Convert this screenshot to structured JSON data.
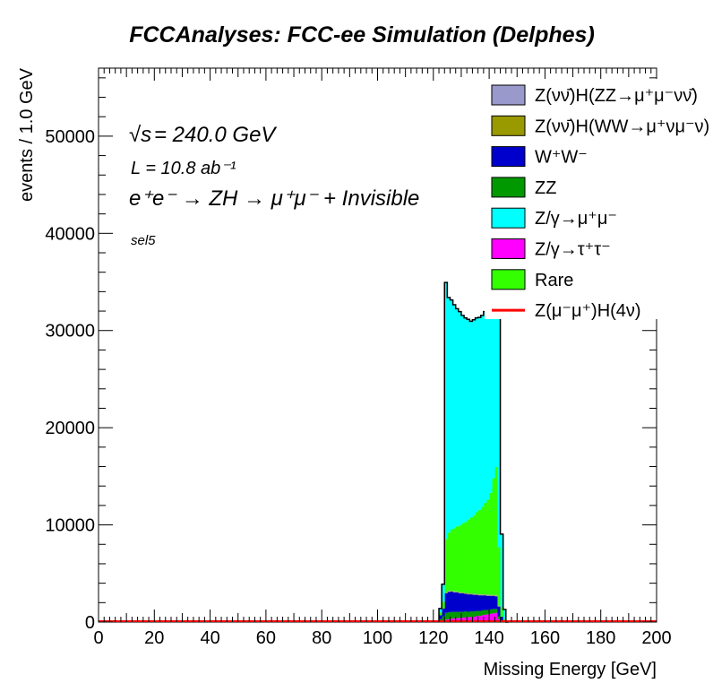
{
  "chart_data": {
    "type": "area",
    "stacked": true,
    "title": "FCCAnalyses: FCC-ee Simulation (Delphes)",
    "xlabel": "Missing Energy [GeV]",
    "ylabel": "events / 1.0 GeV",
    "xlim": [
      0,
      200
    ],
    "ylim": [
      0,
      57000
    ],
    "xticks": [
      "0",
      "20",
      "40",
      "60",
      "80",
      "100",
      "120",
      "140",
      "160",
      "180",
      "200"
    ],
    "yticks": [
      "0",
      "10000",
      "20000",
      "30000",
      "40000",
      "50000"
    ],
    "grid": false,
    "legend_position": "top-right",
    "annotations": {
      "energy_sqrt": "√s",
      "energy_value": " = 240.0 GeV",
      "lumi": "L = 10.8 ab⁻¹",
      "process": "e⁺e⁻ → ZH → μ⁺μ⁻ + Invisible",
      "selection": "sel5"
    },
    "x": [
      122,
      123,
      124,
      125,
      126,
      127,
      128,
      129,
      130,
      131,
      132,
      133,
      134,
      135,
      136,
      137,
      138,
      139,
      140,
      141,
      142,
      143,
      144,
      145,
      146
    ],
    "series": [
      {
        "name": "Z/γ→τ⁺τ⁻",
        "color": "#ff00ff",
        "values": [
          0,
          100,
          250,
          300,
          350,
          400,
          400,
          450,
          450,
          500,
          500,
          550,
          550,
          600,
          650,
          700,
          750,
          800,
          850,
          900,
          950,
          300,
          0,
          0,
          0
        ]
      },
      {
        "name": "ZZ",
        "color": "#009900",
        "values": [
          300,
          500,
          700,
          700,
          700,
          650,
          650,
          600,
          600,
          600,
          550,
          550,
          550,
          550,
          500,
          500,
          500,
          450,
          450,
          450,
          400,
          300,
          150,
          50,
          0
        ]
      },
      {
        "name": "W⁺W⁻",
        "color": "#0000cc",
        "values": [
          400,
          800,
          2000,
          2100,
          2100,
          2000,
          2000,
          1900,
          1900,
          1800,
          1800,
          1750,
          1700,
          1650,
          1600,
          1550,
          1500,
          1450,
          1400,
          1350,
          1300,
          1000,
          400,
          100,
          0
        ]
      },
      {
        "name": "Z(νν̄)H(WW→μ⁺νμ⁻ν)",
        "color": "#999900",
        "values": [
          0,
          0,
          50,
          50,
          50,
          50,
          50,
          50,
          50,
          50,
          50,
          50,
          50,
          50,
          50,
          50,
          50,
          50,
          50,
          50,
          50,
          50,
          0,
          0,
          0
        ]
      },
      {
        "name": "Z(νν̄)H(ZZ→μ⁺μ⁻νν̄)",
        "color": "#9999cc",
        "values": [
          0,
          0,
          50,
          50,
          50,
          50,
          50,
          50,
          50,
          50,
          50,
          50,
          50,
          50,
          50,
          50,
          50,
          50,
          50,
          50,
          50,
          50,
          0,
          0,
          0
        ]
      },
      {
        "name": "Rare",
        "color": "#33ff00",
        "values": [
          300,
          700,
          5500,
          6000,
          6300,
          6500,
          6700,
          6900,
          7100,
          7300,
          7600,
          7800,
          8100,
          8400,
          8700,
          9000,
          9400,
          9800,
          10500,
          12000,
          13200,
          6000,
          1000,
          150,
          0
        ]
      },
      {
        "name": "Z/γ→μ⁺μ⁻",
        "color": "#00ffff",
        "values": [
          400,
          1800,
          26400,
          24200,
          23600,
          23000,
          22400,
          22000,
          21400,
          21000,
          20600,
          20200,
          20100,
          20000,
          19800,
          19700,
          19700,
          19600,
          19600,
          20100,
          24200,
          30000,
          7500,
          1000,
          0
        ]
      }
    ],
    "signal": {
      "name": "Z(μ⁻μ⁺)H(4ν)",
      "color": "#ff0000",
      "values": [
        0,
        0,
        0,
        0,
        0,
        0,
        0,
        0,
        0,
        0,
        0,
        0,
        0,
        0,
        0,
        0,
        0,
        0,
        0,
        0,
        0,
        0,
        0,
        0,
        0
      ]
    },
    "legend_order": [
      "Z(νν̄)H(ZZ→μ⁺μ⁻νν̄)",
      "Z(νν̄)H(WW→μ⁺νμ⁻ν)",
      "W⁺W⁻",
      "ZZ",
      "Z/γ→μ⁺μ⁻",
      "Z/γ→τ⁺τ⁻",
      "Rare",
      "Z(μ⁻μ⁺)H(4ν)"
    ]
  }
}
